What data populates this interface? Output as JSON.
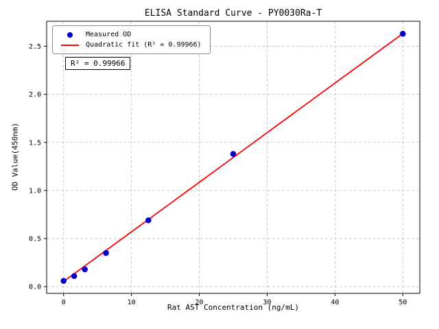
{
  "chart_data": {
    "type": "scatter",
    "title": "ELISA Standard Curve - PY0030Ra-T",
    "xlabel": "Rat AST Concentration (ng/mL)",
    "ylabel": "OD Value(450nm)",
    "xlim": [
      -2.5,
      52.5
    ],
    "ylim": [
      -0.07,
      2.76
    ],
    "xticks": [
      0,
      10,
      20,
      30,
      40,
      50
    ],
    "yticks": [
      0.0,
      0.5,
      1.0,
      1.5,
      2.0,
      2.5
    ],
    "grid": true,
    "annotation": "R² = 0.99966",
    "colors": {
      "measured": "#0000cc",
      "fit": "#ff0000",
      "grid": "#bfbfbf"
    },
    "legend": {
      "position": "upper-left",
      "entries": [
        {
          "label": "Measured OD",
          "type": "point",
          "color": "#0000cc"
        },
        {
          "label": "Quadratic fit (R² = 0.99966)",
          "type": "line",
          "color": "#ff0000"
        }
      ]
    },
    "series": [
      {
        "name": "Quadratic fit",
        "type": "line",
        "color": "#ff0000",
        "points": [
          {
            "x": 0,
            "y": 0.053
          },
          {
            "x": 6.25,
            "y": 0.376
          },
          {
            "x": 12.5,
            "y": 0.699
          },
          {
            "x": 18.75,
            "y": 1.021
          },
          {
            "x": 25,
            "y": 1.343
          },
          {
            "x": 31.25,
            "y": 1.666
          },
          {
            "x": 37.5,
            "y": 1.988
          },
          {
            "x": 43.75,
            "y": 2.31
          },
          {
            "x": 50,
            "y": 2.632
          }
        ]
      },
      {
        "name": "Measured OD",
        "type": "scatter",
        "color": "#0000cc",
        "points": [
          {
            "x": 0,
            "y": 0.06
          },
          {
            "x": 1.5625,
            "y": 0.11
          },
          {
            "x": 3.125,
            "y": 0.18
          },
          {
            "x": 6.25,
            "y": 0.35
          },
          {
            "x": 12.5,
            "y": 0.69
          },
          {
            "x": 25,
            "y": 1.38
          },
          {
            "x": 50,
            "y": 2.63
          }
        ]
      }
    ]
  }
}
